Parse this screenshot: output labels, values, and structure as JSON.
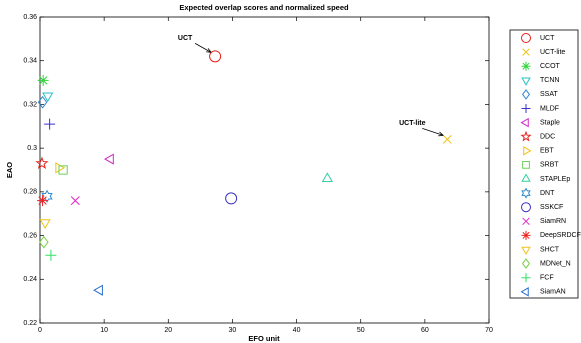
{
  "chart_data": {
    "type": "scatter",
    "title": "Expected overlap scores and normalized speed",
    "x_label": "EFO unit",
    "y_label": "EAO",
    "xlim": [
      0,
      70
    ],
    "xticks": [
      0,
      10,
      20,
      30,
      40,
      50,
      60,
      70
    ],
    "ylim": [
      0.22,
      0.36
    ],
    "yticks": [
      0.22,
      0.24,
      0.26,
      0.28,
      0.3,
      0.32,
      0.34,
      0.36
    ],
    "grid": false,
    "legend": "outside right",
    "series": [
      {
        "name": "UCT",
        "color": "#e8201a",
        "marker": "o",
        "x": [
          27.3
        ],
        "values": [
          0.342
        ]
      },
      {
        "name": "UCT-lite",
        "color": "#f0c419",
        "marker": "x",
        "x": [
          63.5
        ],
        "values": [
          0.304
        ]
      },
      {
        "name": "CCOT",
        "color": "#2ed63a",
        "marker": "*",
        "x": [
          0.5
        ],
        "values": [
          0.331
        ]
      },
      {
        "name": "TCNN",
        "color": "#22c2c8",
        "marker": "v",
        "x": [
          1.2
        ],
        "values": [
          0.324
        ]
      },
      {
        "name": "SSAT",
        "color": "#2f86d6",
        "marker": "d",
        "x": [
          0.4
        ],
        "values": [
          0.321
        ]
      },
      {
        "name": "MLDF",
        "color": "#3a30d0",
        "marker": "+",
        "x": [
          1.5
        ],
        "values": [
          0.311
        ]
      },
      {
        "name": "Staple",
        "color": "#d226c8",
        "marker": "<",
        "x": [
          11
        ],
        "values": [
          0.295
        ]
      },
      {
        "name": "DDC",
        "color": "#e8201a",
        "marker": "p",
        "x": [
          0.3
        ],
        "values": [
          0.293
        ]
      },
      {
        "name": "EBT",
        "color": "#f0c419",
        "marker": ">",
        "x": [
          2.9
        ],
        "values": [
          0.291
        ]
      },
      {
        "name": "SRBT",
        "color": "#6bd15a",
        "marker": "s",
        "x": [
          3.6
        ],
        "values": [
          0.29
        ]
      },
      {
        "name": "STAPLEp",
        "color": "#34d0a0",
        "marker": "^",
        "x": [
          44.8
        ],
        "values": [
          0.286
        ]
      },
      {
        "name": "DNT",
        "color": "#2f8ad0",
        "marker": "h",
        "x": [
          1.1
        ],
        "values": [
          0.278
        ]
      },
      {
        "name": "SSKCF",
        "color": "#3a30c0",
        "marker": "o",
        "x": [
          29.8
        ],
        "values": [
          0.277
        ]
      },
      {
        "name": "SiamRN",
        "color": "#e026c8",
        "marker": "x",
        "x": [
          5.5
        ],
        "values": [
          0.276
        ]
      },
      {
        "name": "DeepSRDCF",
        "color": "#f02020",
        "marker": "*",
        "x": [
          0.4
        ],
        "values": [
          0.276
        ]
      },
      {
        "name": "SHCT",
        "color": "#f0c419",
        "marker": "v",
        "x": [
          0.8
        ],
        "values": [
          0.266
        ]
      },
      {
        "name": "MDNet_N",
        "color": "#74d040",
        "marker": "d",
        "x": [
          0.6
        ],
        "values": [
          0.257
        ]
      },
      {
        "name": "FCF",
        "color": "#30e060",
        "marker": "+",
        "x": [
          1.7
        ],
        "values": [
          0.251
        ]
      },
      {
        "name": "SiamAN",
        "color": "#2a70d0",
        "marker": "<",
        "x": [
          9.3
        ],
        "values": [
          0.235
        ]
      }
    ]
  }
}
